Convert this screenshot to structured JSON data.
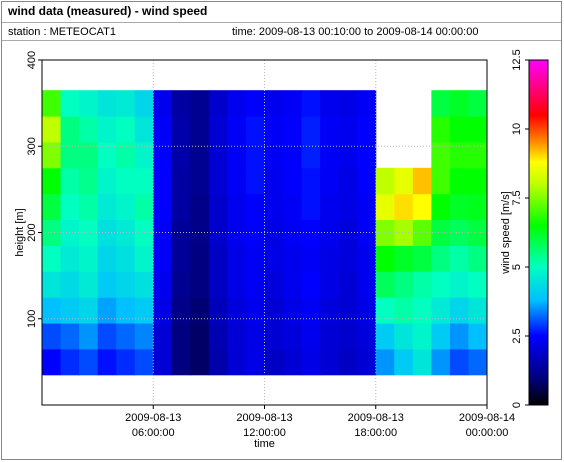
{
  "chart_data": {
    "type": "heatmap",
    "title": "wind data (measured) - wind speed",
    "station": "station : METEOCAT1",
    "time": "time: 2009-08-13 00:10:00 to 2009-08-14 00:00:00",
    "xlabel": "time",
    "ylabel": "height [m]",
    "zlabel": "wind speed [m/s]",
    "xlim": [
      0,
      24
    ],
    "xticks": [
      {
        "value": 6,
        "label": [
          "2009-08-13",
          "06:00:00"
        ]
      },
      {
        "value": 12,
        "label": [
          "2009-08-13",
          "12:00:00"
        ]
      },
      {
        "value": 18,
        "label": [
          "2009-08-13",
          "18:00:00"
        ]
      },
      {
        "value": 24,
        "label": [
          "2009-08-14",
          "00:00:00"
        ]
      }
    ],
    "ylim": [
      0,
      400
    ],
    "yticks": [
      100,
      200,
      300,
      400
    ],
    "zlim": [
      0,
      12.5
    ],
    "zticks": [
      0,
      2.5,
      5,
      7.5,
      10,
      12.5
    ],
    "grid": true,
    "xbins": [
      0,
      1,
      2,
      3,
      4,
      5,
      6,
      7,
      8,
      9,
      10,
      11,
      12,
      13,
      14,
      15,
      16,
      17,
      18,
      19,
      20,
      21,
      22,
      23,
      24
    ],
    "ybins": [
      35,
      65,
      95,
      125,
      155,
      185,
      215,
      245,
      275,
      305,
      335,
      365
    ],
    "colorscale": [
      [
        0,
        "#000000"
      ],
      [
        1,
        "#000080"
      ],
      [
        2.5,
        "#0000ff"
      ],
      [
        3.8,
        "#00c0ff"
      ],
      [
        5,
        "#00ffc0"
      ],
      [
        6.5,
        "#00ff00"
      ],
      [
        8,
        "#c0ff00"
      ],
      [
        8.8,
        "#ffff00"
      ],
      [
        9.6,
        "#ff8000"
      ],
      [
        10.5,
        "#ff0000"
      ],
      [
        12.5,
        "#ff00ff"
      ]
    ],
    "values": [
      [
        2.5,
        2.8,
        3.0,
        2.6,
        2.8,
        3.0,
        2.0,
        1.0,
        0.8,
        1.5,
        2.0,
        2.2,
        1.8,
        2.0,
        2.2,
        2.0,
        1.8,
        2.0,
        3.5,
        4.0,
        4.5,
        3.5,
        3.0,
        3.2
      ],
      [
        3.0,
        3.2,
        3.5,
        3.0,
        3.2,
        3.4,
        2.0,
        1.0,
        0.8,
        1.6,
        2.0,
        2.2,
        2.0,
        2.1,
        2.3,
        2.0,
        1.9,
        2.1,
        4.0,
        4.5,
        4.8,
        4.0,
        3.5,
        3.8
      ],
      [
        3.8,
        4.0,
        4.2,
        3.6,
        3.8,
        4.0,
        2.2,
        1.1,
        0.9,
        1.7,
        2.1,
        2.3,
        2.0,
        2.2,
        2.4,
        2.1,
        2.0,
        2.2,
        5.0,
        5.2,
        5.0,
        4.6,
        4.2,
        4.5
      ],
      [
        4.5,
        4.3,
        4.6,
        4.0,
        4.2,
        4.4,
        2.3,
        1.2,
        1.0,
        1.8,
        2.2,
        2.4,
        2.1,
        2.3,
        2.5,
        2.2,
        2.0,
        2.3,
        5.8,
        5.5,
        5.2,
        5.0,
        4.8,
        5.0
      ],
      [
        5.0,
        4.6,
        4.8,
        4.2,
        4.4,
        4.8,
        2.4,
        1.3,
        1.0,
        1.8,
        2.2,
        2.4,
        2.2,
        2.3,
        2.4,
        2.2,
        2.1,
        2.3,
        6.5,
        6.2,
        6.0,
        5.5,
        5.2,
        5.5
      ],
      [
        5.5,
        4.8,
        5.0,
        4.4,
        4.6,
        5.0,
        2.4,
        1.3,
        1.1,
        1.9,
        2.3,
        2.5,
        2.2,
        2.4,
        2.5,
        2.3,
        2.1,
        2.4,
        7.5,
        7.8,
        7.2,
        6.0,
        5.8,
        6.0
      ],
      [
        6.0,
        5.0,
        5.2,
        4.6,
        4.8,
        5.2,
        2.5,
        1.4,
        1.1,
        1.9,
        2.3,
        2.5,
        2.3,
        2.4,
        2.6,
        2.3,
        2.2,
        2.4,
        8.5,
        9.0,
        8.8,
        6.5,
        6.2,
        6.3
      ],
      [
        6.5,
        5.2,
        5.4,
        4.8,
        5.0,
        5.0,
        2.5,
        1.4,
        1.2,
        2.0,
        2.4,
        2.6,
        2.3,
        2.5,
        2.6,
        2.4,
        2.2,
        2.5,
        8.0,
        8.5,
        9.2,
        7.0,
        6.5,
        6.5
      ],
      [
        7.5,
        5.5,
        5.5,
        5.0,
        5.2,
        4.8,
        2.5,
        1.5,
        1.2,
        2.0,
        2.4,
        2.6,
        2.4,
        2.5,
        2.7,
        2.4,
        2.3,
        2.5,
        null,
        null,
        null,
        7.0,
        6.8,
        6.8
      ],
      [
        8.0,
        5.5,
        5.2,
        4.8,
        5.0,
        4.5,
        2.4,
        1.5,
        1.2,
        2.0,
        2.4,
        2.6,
        2.4,
        2.5,
        2.7,
        2.4,
        2.3,
        2.5,
        null,
        null,
        null,
        6.8,
        6.5,
        6.5
      ],
      [
        7.0,
        5.0,
        4.8,
        4.5,
        4.6,
        4.2,
        2.3,
        1.4,
        1.2,
        1.9,
        2.3,
        2.5,
        2.3,
        2.4,
        2.6,
        2.3,
        2.2,
        2.4,
        null,
        null,
        null,
        6.0,
        6.2,
        6.0
      ]
    ]
  }
}
